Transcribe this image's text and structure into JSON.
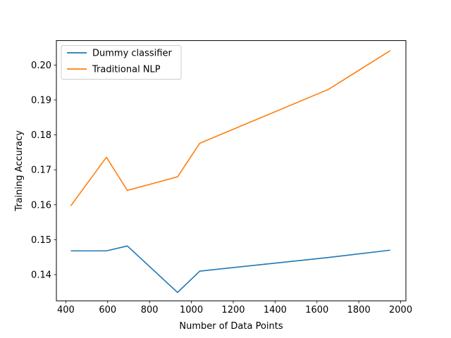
{
  "chart_data": {
    "type": "line",
    "title": "",
    "xlabel": "Number of Data Points",
    "ylabel": "Training Accuracy",
    "xlim": [
      355,
      2025
    ],
    "ylim": [
      0.1325,
      0.207
    ],
    "xticks": [
      400,
      600,
      800,
      1000,
      1200,
      1400,
      1600,
      1800,
      2000
    ],
    "yticks": [
      0.14,
      0.15,
      0.16,
      0.17,
      0.18,
      0.19,
      0.2
    ],
    "ytick_labels": [
      "0.14",
      "0.15",
      "0.16",
      "0.17",
      "0.18",
      "0.19",
      "0.20"
    ],
    "grid": false,
    "legend_position": "upper-left",
    "series": [
      {
        "name": "Dummy classifier",
        "color": "#1f77b4",
        "x": [
          424,
          594,
          694,
          934,
          1040,
          1654,
          1950
        ],
        "y": [
          0.1468,
          0.1468,
          0.1482,
          0.1349,
          0.141,
          0.1449,
          0.147
        ]
      },
      {
        "name": "Traditional NLP",
        "color": "#ff7f0e",
        "x": [
          424,
          594,
          694,
          934,
          1040,
          1654,
          1950
        ],
        "y": [
          0.1597,
          0.1736,
          0.1641,
          0.168,
          0.1776,
          0.193,
          0.2041
        ]
      }
    ]
  }
}
